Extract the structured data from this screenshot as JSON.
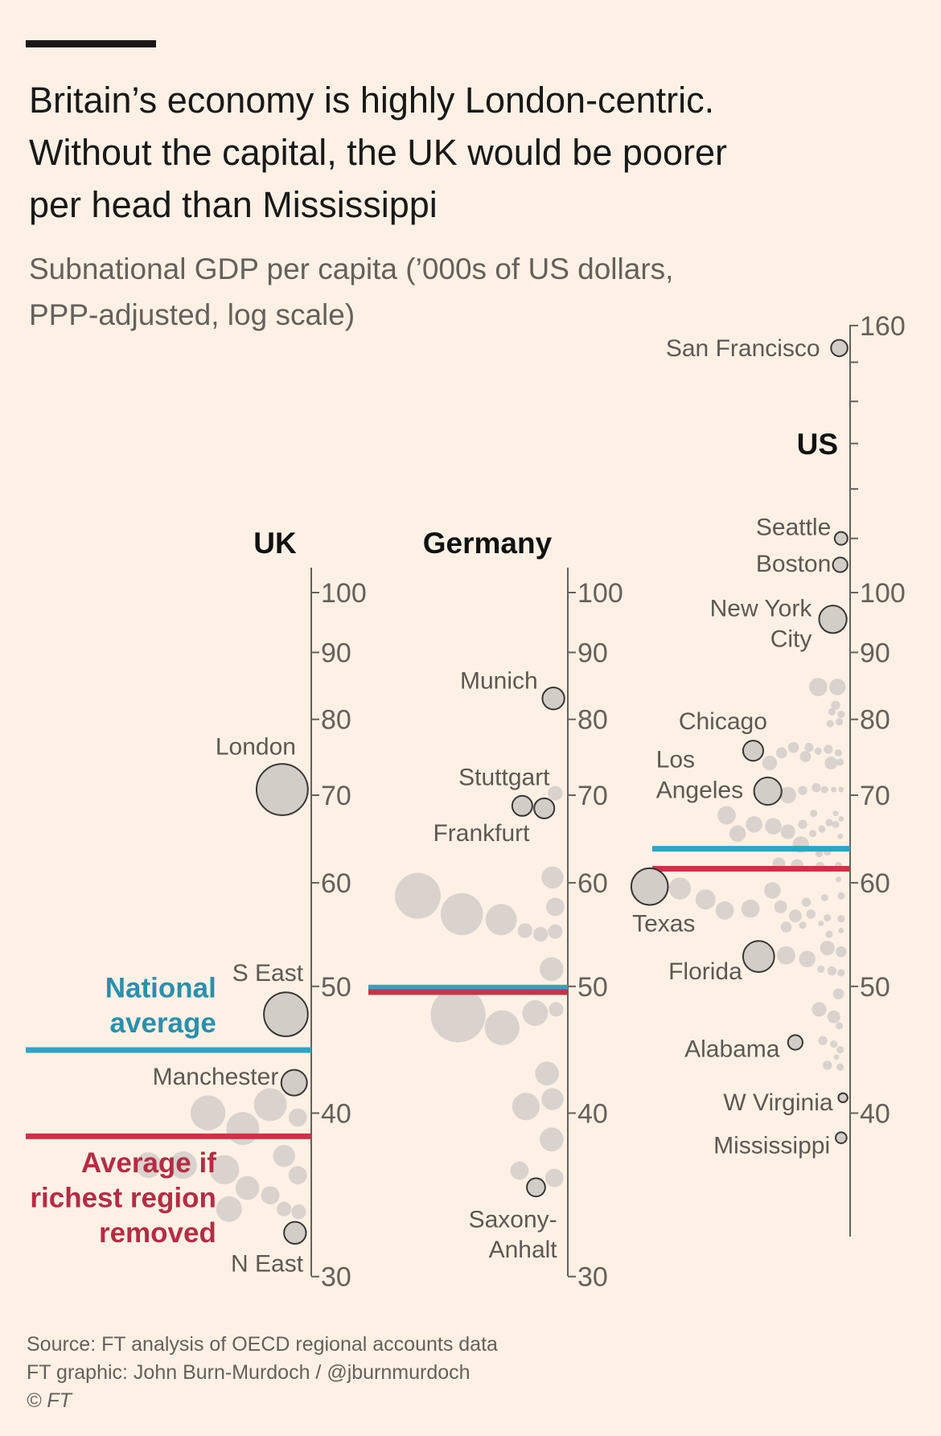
{
  "header": {
    "title_lines": [
      "Britain’s economy is highly London-centric.",
      "Without the capital, the UK would be poorer",
      "per head than Mississippi"
    ],
    "subtitle_lines": [
      "Subnational GDP per capita (’000s of US dollars,",
      "PPP-adjusted, log scale)"
    ]
  },
  "footer": {
    "source": "Source: FT analysis of OECD regional accounts data",
    "credit": "FT graphic: John Burn-Murdoch / @jburnmurdoch",
    "copyright": "© FT"
  },
  "colors": {
    "background": "#fdf1e6",
    "national_average": "#2fa3c6",
    "national_average_text": "#2b8fab",
    "richest_removed": "#cc3147",
    "richest_removed_text": "#b52c44",
    "dot_fill": "#d3cdc8",
    "dot_stroke": "#3a3633",
    "axis": "#66605a"
  },
  "chart_data": {
    "type": "scatter",
    "title": "Britain’s economy is highly London-centric. Without the capital, the UK would be poorer per head than Mississippi",
    "ylabel": "Subnational GDP per capita (’000s of US dollars, PPP-adjusted, log scale)",
    "yscale": "log",
    "legend": {
      "national_average": "National average",
      "richest_removed_lines": [
        "Average if",
        "richest region",
        "removed"
      ],
      "national_average_lines": [
        "National",
        "average"
      ]
    },
    "countries": [
      {
        "name": "UK",
        "ylim": [
          30,
          100
        ],
        "ticks": [
          30,
          40,
          50,
          60,
          70,
          80,
          90,
          100
        ],
        "tick_labels": [
          "30",
          "40",
          "50",
          "60",
          "70",
          "80",
          "90",
          "100"
        ],
        "national_average": 44.7,
        "average_without_richest": 38.4,
        "points": [
          {
            "name": "London",
            "label_lines": [
              "London"
            ],
            "value": 70.7,
            "size": 28
          },
          {
            "name": "S East",
            "label_lines": [
              "S East"
            ],
            "value": 47.6,
            "size": 24
          },
          {
            "name": "Manchester",
            "label_lines": [
              "Manchester"
            ],
            "value": 42.2,
            "size": 14
          },
          {
            "name": "N East",
            "label_lines": [
              "N East"
            ],
            "value": 32.4,
            "size": 12
          }
        ]
      },
      {
        "name": "Germany",
        "ylim": [
          30,
          100
        ],
        "ticks": [
          30,
          40,
          50,
          60,
          70,
          80,
          90,
          100
        ],
        "tick_labels": [
          "30",
          "40",
          "50",
          "60",
          "70",
          "80",
          "90",
          "100"
        ],
        "national_average": 49.9,
        "average_without_richest": 49.5,
        "points": [
          {
            "name": "Munich",
            "label_lines": [
              "Munich"
            ],
            "value": 83.0,
            "size": 12
          },
          {
            "name": "Stuttgart",
            "label_lines": [
              "Stuttgart"
            ],
            "value": 68.4,
            "size": 11
          },
          {
            "name": "Frankfurt",
            "label_lines": [
              "Frankfurt"
            ],
            "value": 68.7,
            "size": 11
          },
          {
            "name": "Saxony-Anhalt",
            "label_lines": [
              "Saxony-",
              "Anhalt"
            ],
            "value": 35.1,
            "size": 10
          }
        ]
      },
      {
        "name": "US",
        "ylim": [
          35,
          160
        ],
        "ticks": [
          40,
          50,
          60,
          70,
          80,
          90,
          100,
          110,
          120,
          130,
          140,
          150,
          160
        ],
        "tick_labels": [
          "40",
          "50",
          "60",
          "70",
          "80",
          "90",
          "100",
          "",
          "",
          "",
          "",
          "",
          "160"
        ],
        "national_average": 63.7,
        "average_without_richest": 61.5,
        "points": [
          {
            "name": "San Francisco",
            "label_lines": [
              "San Francisco"
            ],
            "value": 153.8,
            "size": 9
          },
          {
            "name": "Seattle",
            "label_lines": [
              "Seattle"
            ],
            "value": 110,
            "size": 7
          },
          {
            "name": "Boston",
            "label_lines": [
              "Boston"
            ],
            "value": 105,
            "size": 8
          },
          {
            "name": "New York City",
            "label_lines": [
              "New York",
              "City"
            ],
            "value": 95.4,
            "size": 15
          },
          {
            "name": "Chicago",
            "label_lines": [
              "Chicago"
            ],
            "value": 75.7,
            "size": 11
          },
          {
            "name": "Los Angeles",
            "label_lines": [
              "Los",
              "Angeles"
            ],
            "value": 70.5,
            "size": 15
          },
          {
            "name": "Texas",
            "label_lines": [
              "Texas"
            ],
            "value": 59.6,
            "size": 20
          },
          {
            "name": "Florida",
            "label_lines": [
              "Florida"
            ],
            "value": 52.7,
            "size": 17
          },
          {
            "name": "Alabama",
            "label_lines": [
              "Alabama"
            ],
            "value": 45.3,
            "size": 8
          },
          {
            "name": "W Virginia",
            "label_lines": [
              "W Virginia"
            ],
            "value": 41.1,
            "size": 5
          },
          {
            "name": "Mississippi",
            "label_lines": [
              "Mississippi"
            ],
            "value": 38.3,
            "size": 6
          }
        ]
      }
    ]
  }
}
